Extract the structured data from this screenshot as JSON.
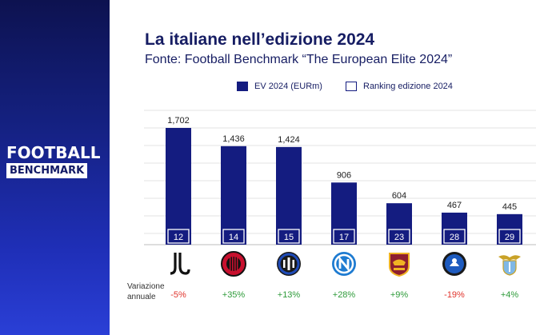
{
  "header": {
    "title": "La italiane nell’edizione 2024",
    "subtitle": "Fonte: Football Benchmark “The European Elite 2024”"
  },
  "logo": {
    "top": "FOOTBALL",
    "bottom": "BENCHMARK"
  },
  "legend": {
    "ev": "EV 2024 (EURm)",
    "ranking": "Ranking edizione 2024"
  },
  "variation_label": {
    "line1": "Variazione",
    "line2": "annuale"
  },
  "colors": {
    "bar": "#141c80",
    "title": "#161d63",
    "positive": "#2e9b3a",
    "negative": "#e0342c",
    "sidebar_dark": "#0d1250",
    "sidebar_light": "#2a3fd6"
  },
  "chart_data": {
    "type": "bar",
    "categories": [
      "juventus-icon",
      "milan-icon",
      "inter-icon",
      "napoli-icon",
      "roma-icon",
      "atalanta-icon",
      "lazio-icon"
    ],
    "values": [
      1702,
      1436,
      1424,
      906,
      604,
      467,
      445
    ],
    "value_labels": [
      "1,702",
      "1,436",
      "1,424",
      "906",
      "604",
      "467",
      "445"
    ],
    "rankings": [
      12,
      14,
      15,
      17,
      23,
      28,
      29
    ],
    "variations": [
      "-5%",
      "+35%",
      "+13%",
      "+28%",
      "+9%",
      "-19%",
      "+4%"
    ],
    "series": [
      {
        "name": "EV 2024 (EURm)",
        "values": [
          1702,
          1436,
          1424,
          906,
          604,
          467,
          445
        ]
      },
      {
        "name": "Ranking edizione 2024",
        "values": [
          12,
          14,
          15,
          17,
          23,
          28,
          29
        ]
      }
    ],
    "ylim": [
      0,
      1800
    ],
    "grid": true,
    "legend_position": "top"
  }
}
